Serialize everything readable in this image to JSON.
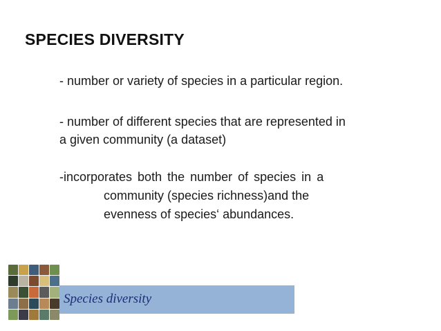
{
  "slide": {
    "title": "SPECIES DIVERSITY",
    "bullets": {
      "b1": "- number or variety of species in a particular region.",
      "b2_line1": "- number of different species that are represented in",
      "b2_line2": "a given community (a dataset)",
      "b3_line1": "-incorporates both the number of species in a",
      "b3_line2": "community (species richness)and the",
      "b3_line3": "evenness of species‘ abundances."
    },
    "banner": {
      "label": "Species diversity",
      "color": "#95b3d7"
    }
  }
}
